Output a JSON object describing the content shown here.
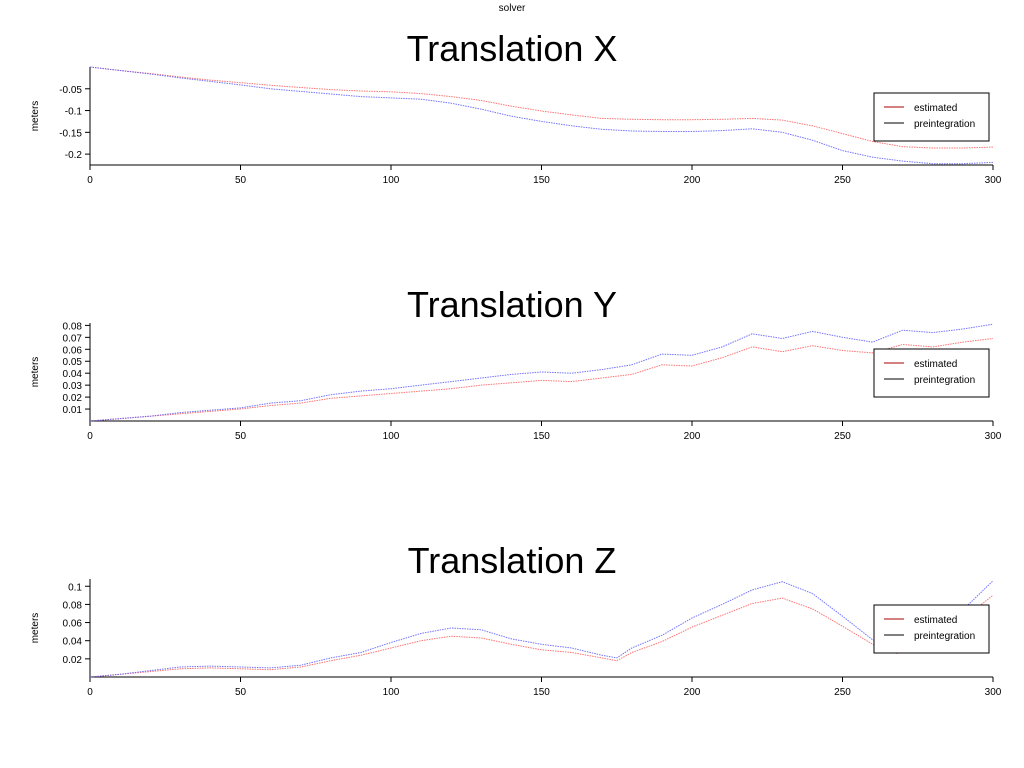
{
  "window": {
    "title": "solver"
  },
  "colors": {
    "estimated": "#ff5a5a",
    "preintegration": "#5a5aff",
    "axis": "#000000",
    "legend_line_estimated": "#aa0000",
    "legend_line_preintegration": "#000000"
  },
  "chart_data": [
    {
      "type": "line",
      "title": "Translation X",
      "xlabel": "",
      "ylabel": "meters",
      "xlim": [
        0,
        300
      ],
      "ylim": [
        -0.225,
        0
      ],
      "xticks": [
        0,
        50,
        100,
        150,
        200,
        250,
        300
      ],
      "yticks": [
        -0.05,
        -0.1,
        -0.15,
        -0.2
      ],
      "ytick_labels": [
        "-0.05",
        "-0.1",
        "-0.15",
        "-0.2"
      ],
      "grid": false,
      "legend": {
        "placement": "right",
        "entries": [
          "estimated",
          "preintegration"
        ]
      },
      "series": [
        {
          "name": "estimated",
          "color": "#ff5a5a",
          "x": [
            0,
            10,
            20,
            30,
            40,
            50,
            60,
            70,
            80,
            90,
            100,
            110,
            120,
            130,
            140,
            150,
            160,
            170,
            180,
            190,
            200,
            210,
            220,
            230,
            240,
            250,
            260,
            270,
            280,
            290,
            300
          ],
          "y": [
            0,
            -0.008,
            -0.015,
            -0.023,
            -0.03,
            -0.036,
            -0.042,
            -0.047,
            -0.052,
            -0.055,
            -0.057,
            -0.061,
            -0.068,
            -0.077,
            -0.09,
            -0.101,
            -0.11,
            -0.118,
            -0.12,
            -0.121,
            -0.121,
            -0.12,
            -0.118,
            -0.122,
            -0.135,
            -0.153,
            -0.171,
            -0.183,
            -0.186,
            -0.186,
            -0.184
          ]
        },
        {
          "name": "preintegration",
          "color": "#5a5aff",
          "x": [
            0,
            10,
            20,
            30,
            40,
            50,
            60,
            70,
            80,
            90,
            100,
            110,
            120,
            130,
            140,
            150,
            160,
            170,
            180,
            190,
            200,
            210,
            220,
            230,
            240,
            250,
            260,
            270,
            280,
            290,
            300
          ],
          "y": [
            0,
            -0.008,
            -0.016,
            -0.025,
            -0.033,
            -0.041,
            -0.05,
            -0.056,
            -0.062,
            -0.068,
            -0.071,
            -0.074,
            -0.083,
            -0.097,
            -0.113,
            -0.125,
            -0.135,
            -0.143,
            -0.147,
            -0.148,
            -0.148,
            -0.146,
            -0.142,
            -0.15,
            -0.168,
            -0.192,
            -0.207,
            -0.216,
            -0.222,
            -0.222,
            -0.219
          ]
        }
      ]
    },
    {
      "type": "line",
      "title": "Translation Y",
      "xlabel": "",
      "ylabel": "meters",
      "xlim": [
        0,
        300
      ],
      "ylim": [
        0,
        0.082
      ],
      "xticks": [
        0,
        50,
        100,
        150,
        200,
        250,
        300
      ],
      "yticks": [
        0.01,
        0.02,
        0.03,
        0.04,
        0.05,
        0.06,
        0.07,
        0.08
      ],
      "ytick_labels": [
        "0.01",
        "0.02",
        "0.03",
        "0.04",
        "0.05",
        "0.06",
        "0.07",
        "0.08"
      ],
      "grid": false,
      "legend": {
        "placement": "right",
        "entries": [
          "estimated",
          "preintegration"
        ]
      },
      "series": [
        {
          "name": "estimated",
          "color": "#ff5a5a",
          "x": [
            0,
            10,
            20,
            30,
            40,
            50,
            60,
            70,
            80,
            90,
            100,
            110,
            120,
            130,
            140,
            150,
            160,
            170,
            180,
            190,
            200,
            210,
            220,
            230,
            240,
            250,
            260,
            270,
            280,
            290,
            300
          ],
          "y": [
            0,
            0.002,
            0.004,
            0.006,
            0.008,
            0.01,
            0.013,
            0.015,
            0.019,
            0.021,
            0.023,
            0.025,
            0.027,
            0.03,
            0.032,
            0.034,
            0.033,
            0.036,
            0.039,
            0.047,
            0.046,
            0.053,
            0.062,
            0.058,
            0.063,
            0.059,
            0.057,
            0.064,
            0.062,
            0.066,
            0.069
          ]
        },
        {
          "name": "preintegration",
          "color": "#5a5aff",
          "x": [
            0,
            10,
            20,
            30,
            40,
            50,
            60,
            70,
            80,
            90,
            100,
            110,
            120,
            130,
            140,
            150,
            160,
            170,
            180,
            190,
            200,
            210,
            220,
            230,
            240,
            250,
            260,
            270,
            280,
            290,
            300
          ],
          "y": [
            0,
            0.002,
            0.004,
            0.007,
            0.009,
            0.011,
            0.015,
            0.017,
            0.022,
            0.025,
            0.027,
            0.03,
            0.033,
            0.036,
            0.039,
            0.041,
            0.04,
            0.043,
            0.047,
            0.056,
            0.055,
            0.062,
            0.073,
            0.069,
            0.075,
            0.07,
            0.066,
            0.076,
            0.074,
            0.077,
            0.081
          ]
        }
      ]
    },
    {
      "type": "line",
      "title": "Translation Z",
      "xlabel": "",
      "ylabel": "meters",
      "xlim": [
        0,
        300
      ],
      "ylim": [
        0,
        0.108
      ],
      "xticks": [
        0,
        50,
        100,
        150,
        200,
        250,
        300
      ],
      "yticks": [
        0.02,
        0.04,
        0.06,
        0.08,
        0.1
      ],
      "ytick_labels": [
        "0.02",
        "0.04",
        "0.06",
        "0.08",
        "0.1"
      ],
      "grid": false,
      "legend": {
        "placement": "right",
        "entries": [
          "estimated",
          "preintegration"
        ]
      },
      "series": [
        {
          "name": "estimated",
          "color": "#ff5a5a",
          "x": [
            0,
            10,
            20,
            30,
            40,
            50,
            60,
            70,
            80,
            90,
            100,
            110,
            120,
            130,
            140,
            150,
            160,
            170,
            175,
            180,
            190,
            200,
            210,
            220,
            230,
            240,
            250,
            260,
            268,
            275,
            280,
            290,
            300
          ],
          "y": [
            0,
            0.003,
            0.006,
            0.009,
            0.01,
            0.009,
            0.008,
            0.011,
            0.018,
            0.024,
            0.032,
            0.04,
            0.045,
            0.043,
            0.036,
            0.03,
            0.027,
            0.021,
            0.018,
            0.027,
            0.039,
            0.055,
            0.068,
            0.081,
            0.087,
            0.075,
            0.056,
            0.036,
            0.026,
            0.03,
            0.039,
            0.064,
            0.09
          ]
        },
        {
          "name": "preintegration",
          "color": "#5a5aff",
          "x": [
            0,
            10,
            20,
            30,
            40,
            50,
            60,
            70,
            80,
            90,
            100,
            110,
            120,
            130,
            140,
            150,
            160,
            170,
            175,
            180,
            190,
            200,
            210,
            220,
            230,
            240,
            250,
            260,
            268,
            275,
            280,
            290,
            300
          ],
          "y": [
            0,
            0.003,
            0.007,
            0.011,
            0.012,
            0.011,
            0.01,
            0.013,
            0.021,
            0.027,
            0.038,
            0.048,
            0.054,
            0.052,
            0.042,
            0.036,
            0.032,
            0.024,
            0.021,
            0.032,
            0.046,
            0.065,
            0.08,
            0.096,
            0.105,
            0.092,
            0.067,
            0.041,
            0.029,
            0.034,
            0.044,
            0.074,
            0.106
          ]
        }
      ]
    }
  ]
}
